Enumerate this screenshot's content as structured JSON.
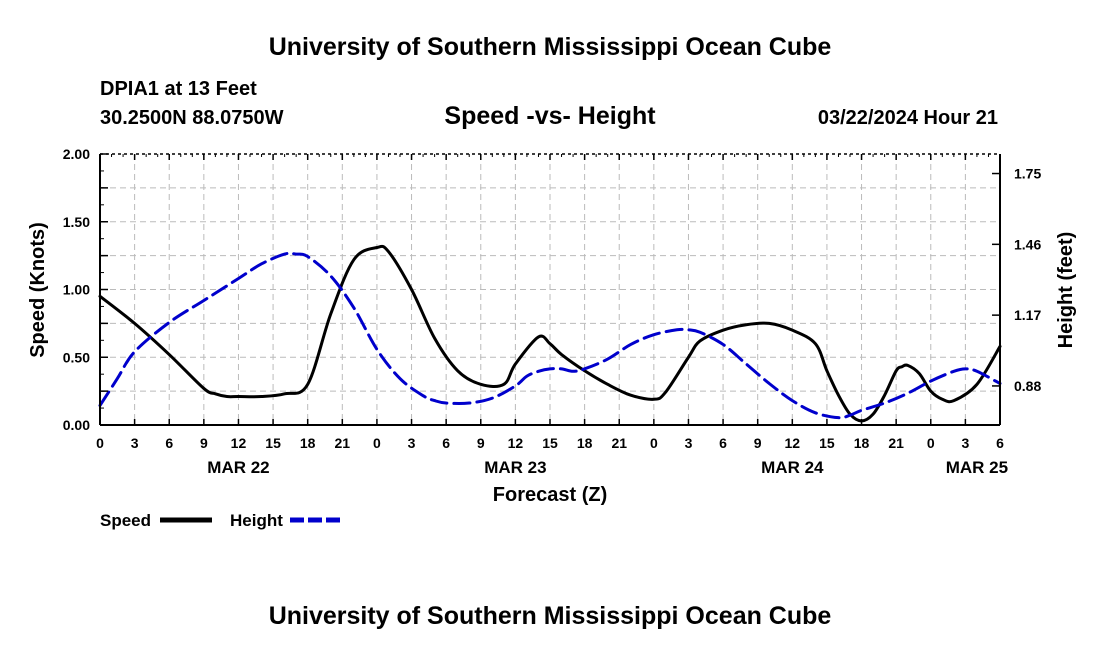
{
  "header": {
    "main_title": "University of Southern Mississippi Ocean Cube",
    "station": "DPIA1 at 13 Feet",
    "location": "30.2500N  88.0750W",
    "datetime": "03/22/2024 Hour 21"
  },
  "footer": {
    "main_title": "University of Southern Mississippi Ocean Cube"
  },
  "colors": {
    "speed": "#000000",
    "height": "#0000cc",
    "grid": "#bbbbbb"
  },
  "chart_data": {
    "type": "line",
    "title": "Speed -vs- Height",
    "xlabel": "Forecast (Z)",
    "ylabel_left": "Speed (Knots)",
    "ylabel_right": "Height (feet)",
    "x_range_hours": [
      0,
      78
    ],
    "x_ticks": [
      {
        "h": 0,
        "label": "0"
      },
      {
        "h": 3,
        "label": "3"
      },
      {
        "h": 6,
        "label": "6"
      },
      {
        "h": 9,
        "label": "9"
      },
      {
        "h": 12,
        "label": "12"
      },
      {
        "h": 15,
        "label": "15"
      },
      {
        "h": 18,
        "label": "18"
      },
      {
        "h": 21,
        "label": "21"
      },
      {
        "h": 24,
        "label": "0"
      },
      {
        "h": 27,
        "label": "3"
      },
      {
        "h": 30,
        "label": "6"
      },
      {
        "h": 33,
        "label": "9"
      },
      {
        "h": 36,
        "label": "12"
      },
      {
        "h": 39,
        "label": "15"
      },
      {
        "h": 42,
        "label": "18"
      },
      {
        "h": 45,
        "label": "21"
      },
      {
        "h": 48,
        "label": "0"
      },
      {
        "h": 51,
        "label": "3"
      },
      {
        "h": 54,
        "label": "6"
      },
      {
        "h": 57,
        "label": "9"
      },
      {
        "h": 60,
        "label": "12"
      },
      {
        "h": 63,
        "label": "15"
      },
      {
        "h": 66,
        "label": "18"
      },
      {
        "h": 69,
        "label": "21"
      },
      {
        "h": 72,
        "label": "0"
      },
      {
        "h": 75,
        "label": "3"
      },
      {
        "h": 78,
        "label": "6"
      }
    ],
    "day_labels": [
      {
        "h": 12,
        "label": "MAR 22"
      },
      {
        "h": 36,
        "label": "MAR 23"
      },
      {
        "h": 60,
        "label": "MAR 24"
      },
      {
        "h": 76,
        "label": "MAR 25"
      }
    ],
    "ylim_left": [
      0,
      2
    ],
    "yticks_left": [
      "0.00",
      "0.50",
      "1.00",
      "1.50",
      "2.00"
    ],
    "ylim_right": [
      0.72,
      1.83
    ],
    "yticks_right": [
      "0.88",
      "1.17",
      "1.46",
      "1.75"
    ],
    "grid": true,
    "series": [
      {
        "name": "Speed",
        "axis": "left",
        "style": "solid",
        "x": [
          0,
          3,
          6,
          9,
          10,
          11,
          12,
          14,
          16,
          18,
          20,
          22,
          24,
          25,
          27,
          29,
          31,
          33,
          35,
          36,
          38,
          39,
          40,
          42,
          44,
          46,
          48,
          49,
          51,
          52,
          54,
          56,
          58,
          60,
          62,
          63,
          64,
          65,
          66,
          67,
          68,
          69,
          69.5,
          70,
          71,
          72,
          73,
          74,
          76,
          78
        ],
        "values": [
          0.95,
          0.75,
          0.52,
          0.27,
          0.23,
          0.21,
          0.21,
          0.21,
          0.23,
          0.3,
          0.82,
          1.22,
          1.31,
          1.28,
          1.0,
          0.64,
          0.4,
          0.3,
          0.3,
          0.45,
          0.65,
          0.6,
          0.52,
          0.4,
          0.3,
          0.22,
          0.19,
          0.24,
          0.5,
          0.62,
          0.7,
          0.74,
          0.75,
          0.7,
          0.6,
          0.4,
          0.22,
          0.08,
          0.03,
          0.08,
          0.22,
          0.4,
          0.43,
          0.44,
          0.38,
          0.25,
          0.19,
          0.18,
          0.3,
          0.58
        ]
      },
      {
        "name": "Height",
        "axis": "right",
        "style": "dashed",
        "x": [
          0,
          1.5,
          3,
          6,
          9,
          12,
          14,
          16,
          17,
          18,
          20,
          22,
          24,
          26,
          28,
          29,
          30,
          32,
          34,
          36,
          37,
          38,
          39,
          40,
          41,
          42,
          44,
          46,
          48,
          50,
          51,
          52,
          54,
          56,
          58,
          60,
          62,
          64,
          65,
          66,
          68,
          70,
          72,
          74,
          75,
          76,
          78
        ],
        "values": [
          0.8,
          0.91,
          1.02,
          1.14,
          1.23,
          1.32,
          1.38,
          1.42,
          1.42,
          1.41,
          1.33,
          1.2,
          1.03,
          0.91,
          0.84,
          0.82,
          0.81,
          0.81,
          0.83,
          0.88,
          0.92,
          0.94,
          0.95,
          0.95,
          0.94,
          0.95,
          0.99,
          1.05,
          1.09,
          1.11,
          1.11,
          1.1,
          1.05,
          0.97,
          0.89,
          0.82,
          0.77,
          0.75,
          0.76,
          0.78,
          0.81,
          0.85,
          0.9,
          0.94,
          0.95,
          0.94,
          0.89
        ]
      }
    ],
    "legend_position": "bottom-left"
  }
}
